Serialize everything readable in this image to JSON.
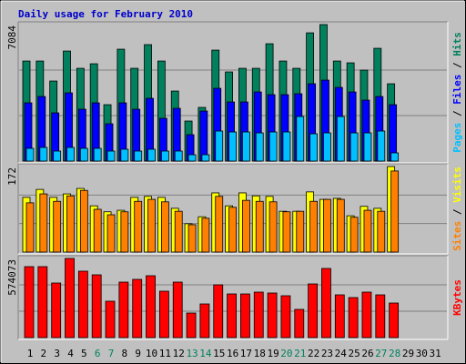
{
  "chart_data": {
    "type": "bar",
    "title": "Daily usage for February 2010",
    "categories": [
      "1",
      "2",
      "3",
      "4",
      "5",
      "6",
      "7",
      "8",
      "9",
      "10",
      "11",
      "12",
      "13",
      "14",
      "15",
      "16",
      "17",
      "18",
      "19",
      "20",
      "21",
      "22",
      "23",
      "24",
      "25",
      "26",
      "27",
      "28",
      "29",
      "30",
      "31"
    ],
    "category_colors": [
      "#000000",
      "#000000",
      "#000000",
      "#000000",
      "#000000",
      "#00805c",
      "#00805c",
      "#000000",
      "#000000",
      "#000000",
      "#000000",
      "#000000",
      "#00805c",
      "#00805c",
      "#000000",
      "#000000",
      "#000000",
      "#000000",
      "#000000",
      "#00805c",
      "#00805c",
      "#000000",
      "#000000",
      "#000000",
      "#000000",
      "#000000",
      "#00805c",
      "#00805c",
      "#000000",
      "#000000",
      "#000000"
    ],
    "panels": [
      {
        "ylim": [
          0,
          7084
        ],
        "yticks": [
          7084
        ]
      },
      {
        "ylim": [
          0,
          172
        ],
        "yticks": [
          172
        ]
      },
      {
        "ylim": [
          0,
          574073
        ],
        "yticks": [
          574073
        ]
      }
    ],
    "series": [
      {
        "name": "Hits",
        "color": "#00805c",
        "panel": 0,
        "values": [
          5192,
          5192,
          4154,
          5711,
          4814,
          5050,
          2926,
          5806,
          4814,
          6042,
          5192,
          3634,
          2077,
          2785,
          5758,
          4626,
          4814,
          4814,
          6089,
          5192,
          4814,
          6655,
          7084,
          5192,
          5098,
          4720,
          5853,
          4012,
          null,
          null,
          null
        ]
      },
      {
        "name": "Files",
        "color": "#0000ff",
        "panel": 0,
        "values": [
          3021,
          3351,
          2502,
          3540,
          2690,
          3021,
          1935,
          3021,
          2690,
          3257,
          2218,
          2738,
          1369,
          2596,
          3776,
          3068,
          3068,
          3587,
          3446,
          3446,
          3493,
          4012,
          4201,
          3823,
          3587,
          3162,
          3351,
          2926,
          null,
          null,
          null
        ]
      },
      {
        "name": "Pages",
        "color": "#00c0ff",
        "panel": 0,
        "values": [
          661,
          708,
          519,
          708,
          661,
          661,
          519,
          614,
          519,
          614,
          519,
          519,
          330,
          330,
          1558,
          1510,
          1510,
          1463,
          1510,
          1510,
          2313,
          1416,
          1463,
          2313,
          1463,
          1463,
          1558,
          425,
          null,
          null,
          null
        ]
      },
      {
        "name": "Visits",
        "color": "#ffff00",
        "panel": 1,
        "values": [
          110,
          126,
          110,
          117,
          128,
          93,
          81,
          84,
          110,
          112,
          110,
          88,
          57,
          71,
          119,
          93,
          119,
          113,
          112,
          82,
          82,
          121,
          106,
          108,
          73,
          92,
          88,
          172,
          null,
          null,
          null
        ]
      },
      {
        "name": "Sites",
        "color": "#ff8000",
        "panel": 1,
        "values": [
          99,
          117,
          102,
          113,
          124,
          86,
          75,
          81,
          102,
          106,
          101,
          82,
          55,
          68,
          112,
          90,
          104,
          102,
          101,
          81,
          82,
          102,
          106,
          106,
          70,
          84,
          82,
          163,
          null,
          null,
          null
        ]
      },
      {
        "name": "KBytes",
        "color": "#ff0000",
        "panel": 2,
        "values": [
          514644,
          514644,
          395880,
          574073,
          481654,
          455262,
          263920,
          402478,
          422272,
          448664,
          336498,
          402478,
          178146,
          244126,
          382684,
          316704,
          316704,
          329900,
          323302,
          303508,
          204538,
          389282,
          501448,
          310106,
          290312,
          329900,
          310106,
          250724,
          null,
          null,
          null
        ]
      }
    ]
  }
}
